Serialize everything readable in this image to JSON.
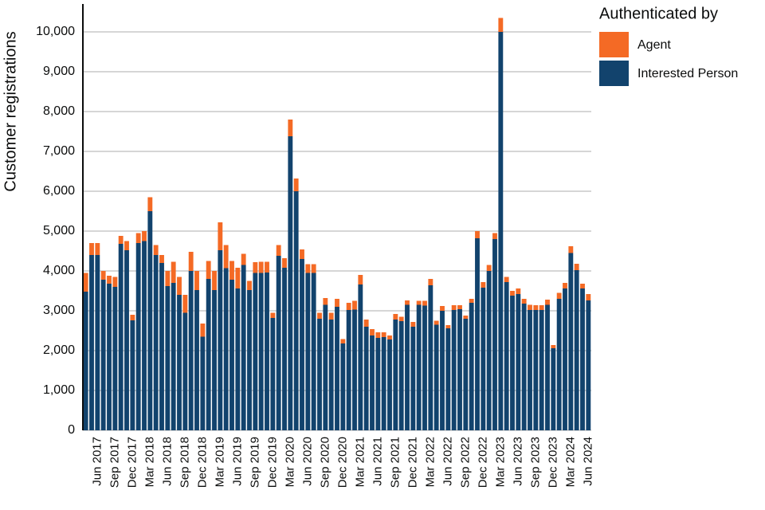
{
  "chart_data": {
    "type": "bar",
    "stacked": true,
    "y_label": "Customer registrations",
    "legend_title": "Authenticated by",
    "legend": "right",
    "grid": true,
    "categories": [
      null,
      null,
      "Jun 2017",
      null,
      null,
      "Sep 2017",
      null,
      null,
      "Dec 2017",
      null,
      null,
      "Mar 2018",
      null,
      null,
      "Jun 2018",
      null,
      null,
      "Sep 2018",
      null,
      null,
      "Dec 2018",
      null,
      null,
      "Mar 2019",
      null,
      null,
      "Jun 2019",
      null,
      null,
      "Sep 2019",
      null,
      null,
      "Dec 2019",
      null,
      null,
      "Mar 2020",
      null,
      null,
      "Jun 2020",
      null,
      null,
      "Sep 2020",
      null,
      null,
      "Dec 2020",
      null,
      null,
      "Mar 2021",
      null,
      null,
      "Jun 2021",
      null,
      null,
      "Sep 2021",
      null,
      null,
      "Dec 2021",
      null,
      null,
      "Mar 2022",
      null,
      null,
      "Jun 2022",
      null,
      null,
      "Sep 2022",
      null,
      null,
      "Dec 2022",
      null,
      null,
      "Mar 2023",
      null,
      null,
      "Jun 2023",
      null,
      null,
      "Sep 2023",
      null,
      null,
      "Dec 2023",
      null,
      null,
      "Mar 2024",
      null,
      null,
      "Jun 2024"
    ],
    "series": [
      {
        "name": "Agent",
        "color": "#f46a25",
        "values": [
          470,
          300,
          300,
          220,
          200,
          250,
          200,
          230,
          140,
          250,
          250,
          350,
          250,
          200,
          380,
          530,
          450,
          450,
          480,
          480,
          330,
          450,
          480,
          700,
          580,
          470,
          520,
          280,
          230,
          270,
          280,
          270,
          130,
          270,
          240,
          420,
          320,
          240,
          220,
          220,
          150,
          170,
          170,
          200,
          110,
          180,
          220,
          240,
          180,
          160,
          140,
          120,
          100,
          140,
          110,
          110,
          120,
          100,
          120,
          160,
          100,
          120,
          80,
          120,
          100,
          80,
          100,
          180,
          140,
          150,
          150,
          350,
          130,
          120,
          140,
          120,
          130,
          120,
          120,
          130,
          80,
          150,
          140,
          170,
          160,
          120,
          160
        ]
      },
      {
        "name": "Interested Person",
        "color": "#12436d",
        "values": [
          3480,
          4400,
          4400,
          3780,
          3680,
          3600,
          4680,
          4520,
          2760,
          4700,
          4750,
          5500,
          4400,
          4200,
          3620,
          3700,
          3400,
          2950,
          4000,
          3520,
          2350,
          3800,
          3520,
          4520,
          4070,
          3780,
          3560,
          4150,
          3520,
          3950,
          3950,
          3960,
          2820,
          4380,
          4080,
          7380,
          6000,
          4300,
          3950,
          3950,
          2800,
          3150,
          2780,
          3100,
          2180,
          3020,
          3030,
          3660,
          2600,
          2380,
          2320,
          2340,
          2280,
          2780,
          2740,
          3150,
          2600,
          3150,
          3130,
          3640,
          2650,
          3000,
          2560,
          3020,
          3040,
          2800,
          3200,
          4820,
          3580,
          4000,
          4800,
          10000,
          3720,
          3380,
          3420,
          3180,
          3020,
          3020,
          3020,
          3150,
          2060,
          3300,
          3560,
          4450,
          4020,
          3560,
          3260
        ]
      }
    ],
    "ylim": [
      0,
      10700
    ],
    "yticks": [
      0,
      {
        "value": 1000,
        "label": "1,000"
      },
      {
        "value": 2000,
        "label": "2,000"
      },
      {
        "value": 3000,
        "label": "3,000"
      },
      {
        "value": 4000,
        "label": "4,000"
      },
      {
        "value": 5000,
        "label": "5,000"
      },
      {
        "value": 6000,
        "label": "6,000"
      },
      {
        "value": 7000,
        "label": "7,000"
      },
      {
        "value": 8000,
        "label": "8,000"
      },
      {
        "value": 9000,
        "label": "9,000"
      },
      {
        "value": 10000,
        "label": "10,000"
      }
    ]
  }
}
